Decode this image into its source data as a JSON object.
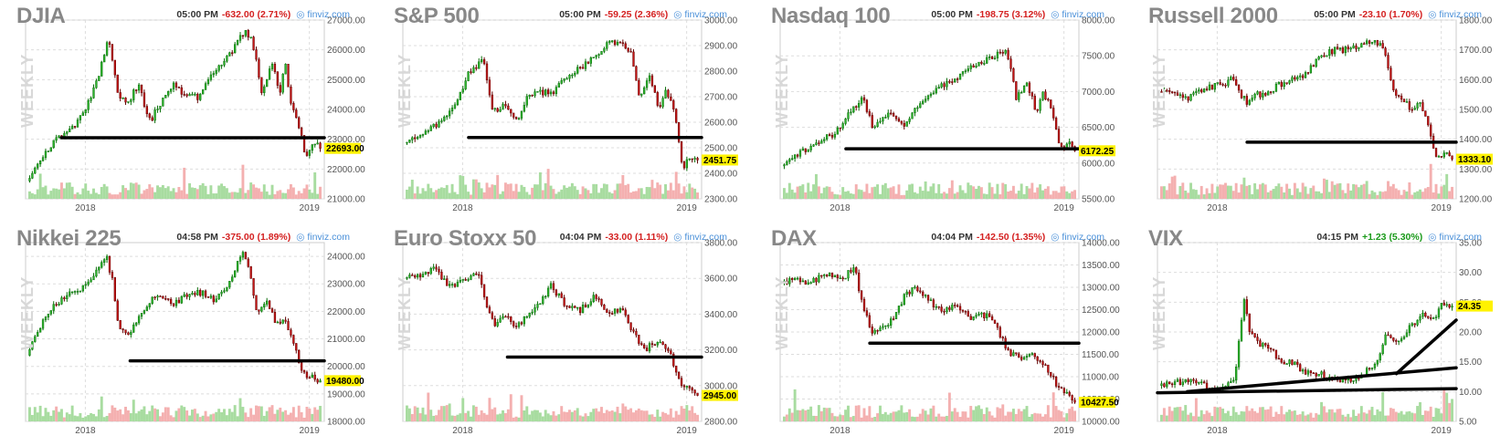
{
  "brand": "finviz.com",
  "timeframe_label": "WEEKLY",
  "colors": {
    "up": "#2db52d",
    "down": "#c81414",
    "up_border": "#0a6e0a",
    "vol_up": "#a8dca0",
    "vol_down": "#f4b0b0",
    "price_tag": "#fff200",
    "positive_text": "#1a9a1a",
    "negative_text": "#d42020",
    "brand": "#4a90d9"
  },
  "chart_data": [
    {
      "type": "candlestick",
      "title": "DJIA",
      "time": "05:00 PM",
      "change": "-632.00 (2.71%)",
      "direction": "down",
      "ylim": [
        21000,
        27000
      ],
      "yticks": [
        "27000.00",
        "26000.00",
        "25000.00",
        "24000.00",
        "23000.00",
        "22000.00",
        "21000.00"
      ],
      "xticks": [
        "2018",
        "2019"
      ],
      "last_price": "22693.00",
      "last_value": 22693,
      "path": [
        [
          0,
          21600
        ],
        [
          5,
          22400
        ],
        [
          10,
          23000
        ],
        [
          15,
          23300
        ],
        [
          20,
          24000
        ],
        [
          24,
          25000
        ],
        [
          28,
          26400
        ],
        [
          31,
          24500
        ],
        [
          34,
          24200
        ],
        [
          38,
          24800
        ],
        [
          42,
          23600
        ],
        [
          46,
          24300
        ],
        [
          50,
          24800
        ],
        [
          54,
          24500
        ],
        [
          58,
          24400
        ],
        [
          62,
          25000
        ],
        [
          66,
          25500
        ],
        [
          70,
          26000
        ],
        [
          74,
          26600
        ],
        [
          76,
          26500
        ],
        [
          78,
          25800
        ],
        [
          80,
          24600
        ],
        [
          84,
          25700
        ],
        [
          86,
          24400
        ],
        [
          88,
          25600
        ],
        [
          90,
          24200
        ],
        [
          93,
          23400
        ],
        [
          95,
          22400
        ],
        [
          98,
          22900
        ],
        [
          100,
          22693
        ]
      ],
      "trendlines": [
        [
          [
            12,
            23050
          ],
          [
            100,
            23050
          ]
        ]
      ]
    },
    {
      "type": "candlestick",
      "title": "S&P 500",
      "time": "05:00 PM",
      "change": "-59.25 (2.36%)",
      "direction": "down",
      "ylim": [
        2300,
        3000
      ],
      "yticks": [
        "3000.00",
        "2900.00",
        "2800.00",
        "2700.00",
        "2600.00",
        "2500.00",
        "2400.00",
        "2300.00"
      ],
      "xticks": [
        "2018",
        "2019"
      ],
      "last_price": "2451.75",
      "last_value": 2452,
      "path": [
        [
          0,
          2520
        ],
        [
          6,
          2560
        ],
        [
          12,
          2600
        ],
        [
          18,
          2680
        ],
        [
          22,
          2800
        ],
        [
          27,
          2840
        ],
        [
          30,
          2640
        ],
        [
          34,
          2670
        ],
        [
          38,
          2600
        ],
        [
          42,
          2700
        ],
        [
          46,
          2720
        ],
        [
          50,
          2710
        ],
        [
          55,
          2780
        ],
        [
          60,
          2810
        ],
        [
          65,
          2860
        ],
        [
          70,
          2910
        ],
        [
          74,
          2900
        ],
        [
          77,
          2880
        ],
        [
          80,
          2700
        ],
        [
          84,
          2780
        ],
        [
          87,
          2640
        ],
        [
          89,
          2740
        ],
        [
          92,
          2650
        ],
        [
          95,
          2420
        ],
        [
          98,
          2470
        ],
        [
          100,
          2452
        ]
      ],
      "trendlines": [
        [
          [
            22,
            2540
          ],
          [
            100,
            2540
          ]
        ]
      ]
    },
    {
      "type": "candlestick",
      "title": "Nasdaq 100",
      "time": "05:00 PM",
      "change": "-198.75 (3.12%)",
      "direction": "down",
      "ylim": [
        5500,
        8000
      ],
      "yticks": [
        "8000.00",
        "7500.00",
        "7000.00",
        "6500.00",
        "6000.00",
        "5500.00"
      ],
      "xticks": [
        "2018",
        "2019"
      ],
      "last_price": "6172.25",
      "last_value": 6172,
      "path": [
        [
          0,
          5960
        ],
        [
          6,
          6140
        ],
        [
          12,
          6300
        ],
        [
          18,
          6400
        ],
        [
          24,
          6750
        ],
        [
          28,
          6900
        ],
        [
          31,
          6500
        ],
        [
          34,
          6600
        ],
        [
          38,
          6700
        ],
        [
          42,
          6500
        ],
        [
          46,
          6800
        ],
        [
          50,
          6900
        ],
        [
          55,
          7100
        ],
        [
          60,
          7200
        ],
        [
          65,
          7350
        ],
        [
          70,
          7450
        ],
        [
          74,
          7520
        ],
        [
          77,
          7550
        ],
        [
          80,
          6900
        ],
        [
          84,
          7100
        ],
        [
          87,
          6700
        ],
        [
          89,
          7000
        ],
        [
          92,
          6800
        ],
        [
          95,
          6200
        ],
        [
          98,
          6300
        ],
        [
          100,
          6172
        ]
      ],
      "trendlines": [
        [
          [
            22,
            6200
          ],
          [
            100,
            6200
          ]
        ]
      ]
    },
    {
      "type": "candlestick",
      "title": "Russell 2000",
      "time": "05:00 PM",
      "change": "-23.10 (1.70%)",
      "direction": "down",
      "ylim": [
        1200,
        1800
      ],
      "yticks": [
        "1800.00",
        "1700.00",
        "1600.00",
        "1500.00",
        "1400.00",
        "1300.00",
        "1200.00"
      ],
      "xticks": [
        "2018",
        "2019"
      ],
      "last_price": "1333.10",
      "last_value": 1333,
      "path": [
        [
          0,
          1560
        ],
        [
          5,
          1560
        ],
        [
          10,
          1540
        ],
        [
          15,
          1570
        ],
        [
          20,
          1580
        ],
        [
          25,
          1600
        ],
        [
          30,
          1520
        ],
        [
          33,
          1560
        ],
        [
          36,
          1540
        ],
        [
          40,
          1580
        ],
        [
          45,
          1600
        ],
        [
          50,
          1620
        ],
        [
          55,
          1680
        ],
        [
          60,
          1700
        ],
        [
          65,
          1700
        ],
        [
          70,
          1720
        ],
        [
          74,
          1730
        ],
        [
          77,
          1700
        ],
        [
          80,
          1560
        ],
        [
          83,
          1540
        ],
        [
          86,
          1500
        ],
        [
          89,
          1520
        ],
        [
          92,
          1440
        ],
        [
          95,
          1330
        ],
        [
          98,
          1350
        ],
        [
          100,
          1333
        ]
      ],
      "trendlines": [
        [
          [
            30,
            1390
          ],
          [
            100,
            1390
          ]
        ]
      ]
    },
    {
      "type": "candlestick",
      "title": "Nikkei 225",
      "time": "04:58 PM",
      "change": "-375.00 (1.89%)",
      "direction": "down",
      "ylim": [
        18000,
        24500
      ],
      "yticks": [
        "24000.00",
        "23000.00",
        "22000.00",
        "21000.00",
        "20000.00",
        "19000.00",
        "18000.00"
      ],
      "xticks": [
        "2018",
        "2019"
      ],
      "last_price": "19480.00",
      "last_value": 19480,
      "path": [
        [
          0,
          20400
        ],
        [
          6,
          21800
        ],
        [
          12,
          22500
        ],
        [
          18,
          22800
        ],
        [
          24,
          23500
        ],
        [
          27,
          24000
        ],
        [
          29,
          23200
        ],
        [
          31,
          21600
        ],
        [
          34,
          21100
        ],
        [
          38,
          21800
        ],
        [
          42,
          22400
        ],
        [
          46,
          22600
        ],
        [
          50,
          22300
        ],
        [
          55,
          22600
        ],
        [
          60,
          22700
        ],
        [
          64,
          22400
        ],
        [
          68,
          22900
        ],
        [
          72,
          23800
        ],
        [
          74,
          24100
        ],
        [
          76,
          23400
        ],
        [
          78,
          22000
        ],
        [
          82,
          22300
        ],
        [
          85,
          21500
        ],
        [
          88,
          21800
        ],
        [
          91,
          20800
        ],
        [
          94,
          19800
        ],
        [
          97,
          19600
        ],
        [
          100,
          19480
        ]
      ],
      "trendlines": [
        [
          [
            35,
            20200
          ],
          [
            100,
            20200
          ]
        ]
      ]
    },
    {
      "type": "candlestick",
      "title": "Euro Stoxx 50",
      "time": "04:04 PM",
      "change": "-33.00 (1.11%)",
      "direction": "down",
      "ylim": [
        2800,
        3800
      ],
      "yticks": [
        "3800.00",
        "3600.00",
        "3400.00",
        "3200.00",
        "3000.00",
        "2800.00"
      ],
      "xticks": [
        "2018",
        "2019"
      ],
      "last_price": "2945.00",
      "last_value": 2945,
      "path": [
        [
          0,
          3600
        ],
        [
          5,
          3610
        ],
        [
          10,
          3660
        ],
        [
          15,
          3560
        ],
        [
          20,
          3580
        ],
        [
          25,
          3640
        ],
        [
          28,
          3450
        ],
        [
          31,
          3320
        ],
        [
          34,
          3400
        ],
        [
          38,
          3320
        ],
        [
          42,
          3400
        ],
        [
          46,
          3460
        ],
        [
          50,
          3560
        ],
        [
          55,
          3450
        ],
        [
          60,
          3420
        ],
        [
          65,
          3500
        ],
        [
          70,
          3400
        ],
        [
          74,
          3440
        ],
        [
          78,
          3300
        ],
        [
          82,
          3200
        ],
        [
          86,
          3250
        ],
        [
          90,
          3200
        ],
        [
          94,
          3020
        ],
        [
          97,
          2980
        ],
        [
          100,
          2945
        ]
      ],
      "trendlines": [
        [
          [
            35,
            3160
          ],
          [
            100,
            3160
          ]
        ]
      ]
    },
    {
      "type": "candlestick",
      "title": "DAX",
      "time": "04:04 PM",
      "change": "-142.50 (1.35%)",
      "direction": "down",
      "ylim": [
        10000,
        14000
      ],
      "yticks": [
        "14000.00",
        "13500.00",
        "13000.00",
        "12500.00",
        "12000.00",
        "11500.00",
        "11000.00",
        "10500.00",
        "10000.00"
      ],
      "xticks": [
        "2018",
        "2019"
      ],
      "last_price": "10427.50",
      "last_value": 10428,
      "path": [
        [
          0,
          13100
        ],
        [
          5,
          13200
        ],
        [
          10,
          13100
        ],
        [
          15,
          13300
        ],
        [
          20,
          13200
        ],
        [
          25,
          13400
        ],
        [
          28,
          12500
        ],
        [
          31,
          12000
        ],
        [
          34,
          12100
        ],
        [
          38,
          12300
        ],
        [
          42,
          12800
        ],
        [
          46,
          13000
        ],
        [
          50,
          12700
        ],
        [
          55,
          12500
        ],
        [
          60,
          12600
        ],
        [
          65,
          12300
        ],
        [
          70,
          12400
        ],
        [
          74,
          12000
        ],
        [
          78,
          11500
        ],
        [
          82,
          11400
        ],
        [
          86,
          11500
        ],
        [
          90,
          11200
        ],
        [
          94,
          10800
        ],
        [
          97,
          10600
        ],
        [
          100,
          10428
        ]
      ],
      "trendlines": [
        [
          [
            30,
            11750
          ],
          [
            100,
            11750
          ]
        ]
      ]
    },
    {
      "type": "candlestick",
      "title": "VIX",
      "time": "04:15 PM",
      "change": "+1.23 (5.30%)",
      "direction": "up",
      "ylim": [
        5,
        35
      ],
      "yticks": [
        "35.00",
        "30.00",
        "25.00",
        "20.00",
        "15.00",
        "10.00",
        "5.00"
      ],
      "xticks": [
        "2018",
        "2019"
      ],
      "last_price": "24.35",
      "last_value": 24.35,
      "path": [
        [
          0,
          11
        ],
        [
          6,
          11.5
        ],
        [
          12,
          12
        ],
        [
          16,
          11
        ],
        [
          20,
          10
        ],
        [
          26,
          12
        ],
        [
          29,
          26
        ],
        [
          31,
          20
        ],
        [
          34,
          18
        ],
        [
          38,
          17
        ],
        [
          42,
          15
        ],
        [
          46,
          15
        ],
        [
          50,
          13
        ],
        [
          55,
          13
        ],
        [
          60,
          12
        ],
        [
          65,
          12
        ],
        [
          70,
          13
        ],
        [
          74,
          15
        ],
        [
          78,
          20
        ],
        [
          82,
          18
        ],
        [
          86,
          21
        ],
        [
          90,
          23
        ],
        [
          94,
          22
        ],
        [
          97,
          25
        ],
        [
          100,
          24.35
        ]
      ],
      "trendlines": [
        [
          [
            0,
            9.8
          ],
          [
            100,
            10.5
          ]
        ],
        [
          [
            10,
            10
          ],
          [
            100,
            14
          ]
        ],
        [
          [
            80,
            13
          ],
          [
            100,
            22
          ]
        ]
      ]
    }
  ]
}
